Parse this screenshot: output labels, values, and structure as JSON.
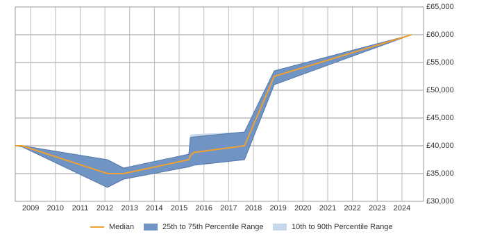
{
  "chart_data": {
    "type": "range-line",
    "x": [
      2008.38,
      2008.66,
      2012.1,
      2012.76,
      2015.39,
      2015.45,
      2015.59,
      2017.64,
      2018.84,
      2024.39
    ],
    "series": [
      {
        "name": "Median",
        "kind": "line",
        "color": "#f0a030",
        "values": [
          40000,
          40000,
          35000,
          35000,
          37500,
          38200,
          38800,
          40000,
          52500,
          60000
        ]
      },
      {
        "name": "25th to 75th Percentile Range",
        "kind": "band",
        "color": "#7094c4",
        "high": [
          40000,
          40000,
          37500,
          36000,
          38500,
          41500,
          41600,
          42500,
          53500,
          60000
        ],
        "low": [
          40000,
          39800,
          32500,
          34000,
          36200,
          36300,
          36500,
          37500,
          51000,
          60000
        ]
      },
      {
        "name": "10th to 90th Percentile Range",
        "kind": "band",
        "color": "#c6d9ec",
        "high": [
          40000,
          40000,
          37500,
          36000,
          38500,
          42000,
          42100,
          42500,
          53500,
          60000
        ],
        "low": [
          40000,
          39800,
          32500,
          34000,
          36200,
          36300,
          36500,
          37500,
          51000,
          60000
        ]
      }
    ],
    "xlim": [
      2008.38,
      2024.87
    ],
    "xticks": [
      2009,
      2010,
      2011,
      2012,
      2013,
      2014,
      2015,
      2016,
      2017,
      2018,
      2019,
      2020,
      2021,
      2022,
      2023,
      2024
    ],
    "ylim": [
      30000,
      65000
    ],
    "yticks": [
      {
        "value": 30000,
        "label": "£30,000"
      },
      {
        "value": 35000,
        "label": "£35,000"
      },
      {
        "value": 40000,
        "label": "£40,000"
      },
      {
        "value": 45000,
        "label": "£45,000"
      },
      {
        "value": 50000,
        "label": "£50,000"
      },
      {
        "value": 55000,
        "label": "£55,000"
      },
      {
        "value": 60000,
        "label": "£60,000"
      },
      {
        "value": 65000,
        "label": "£65,000"
      }
    ],
    "grid": true
  }
}
